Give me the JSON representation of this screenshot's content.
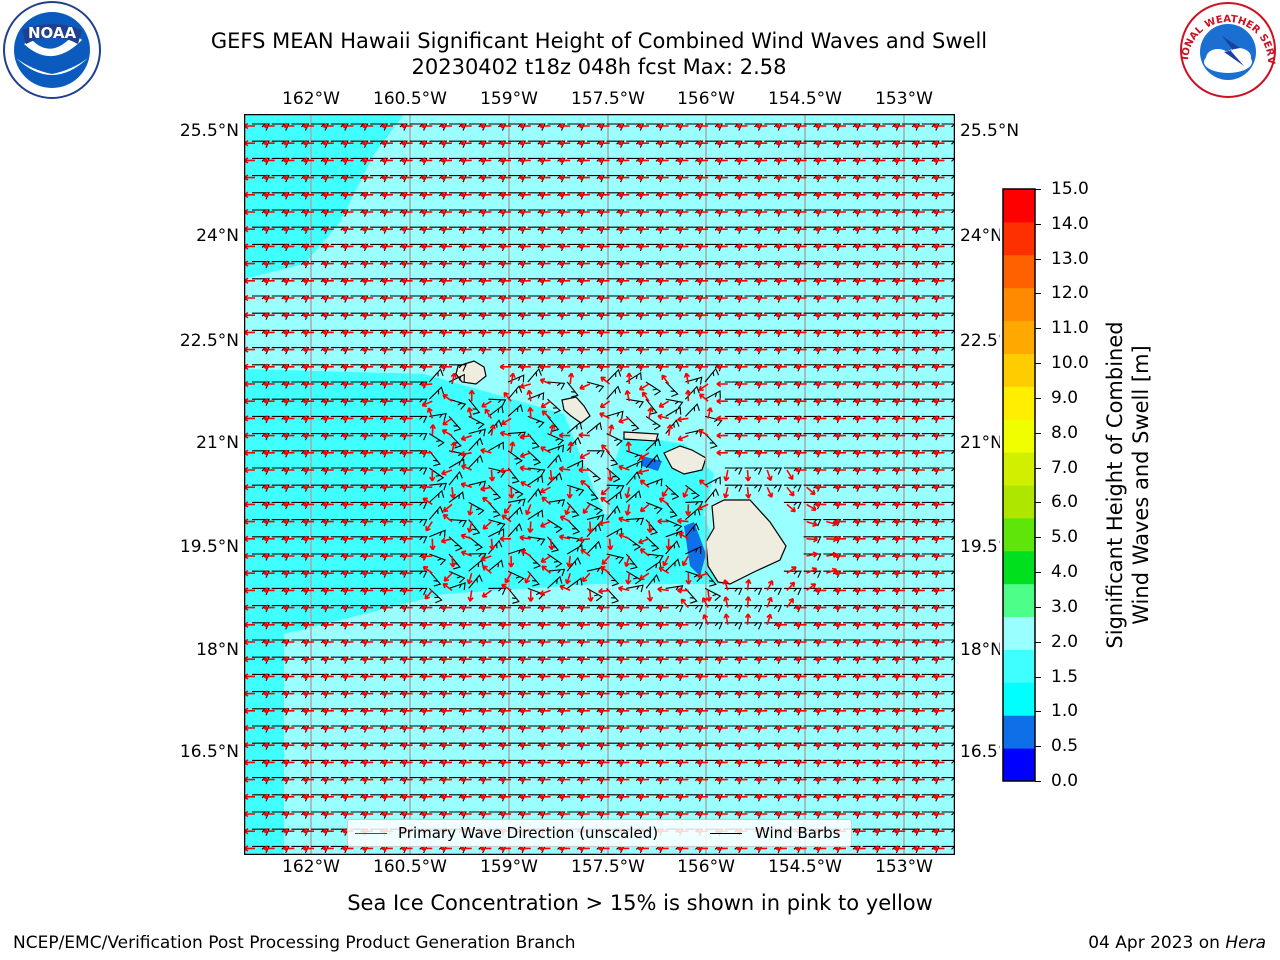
{
  "title": "GEFS MEAN Hawaii Significant Height of Combined Wind Waves and Swell",
  "subtitle": "20230402 t18z 048h fcst   Max: 2.58",
  "lon_labels": [
    "162°W",
    "160.5°W",
    "159°W",
    "157.5°W",
    "156°W",
    "154.5°W",
    "153°W"
  ],
  "lat_labels": [
    "25.5°N",
    "24°N",
    "22.5°N",
    "21°N",
    "19.5°N",
    "18°N",
    "16.5°N"
  ],
  "colorbar": {
    "label_line1": "Significant Height of Combined",
    "label_line2": "Wind Waves and Swell [m]",
    "ticks": [
      "15.0",
      "14.0",
      "13.0",
      "12.0",
      "11.0",
      "10.0",
      "9.0",
      "8.0",
      "7.0",
      "6.0",
      "5.0",
      "4.0",
      "3.0",
      "2.0",
      "1.5",
      "1.0",
      "0.5",
      "0.0"
    ],
    "colors": [
      "#0000ff",
      "#0f6fe8",
      "#00ffff",
      "#40ffff",
      "#99ffff",
      "#4dff88",
      "#00e01e",
      "#5ee60b",
      "#aee600",
      "#d0f000",
      "#f0ff00",
      "#ffee00",
      "#ffcc00",
      "#ffa800",
      "#ff8a00",
      "#ff6000",
      "#ff3000",
      "#ff0000"
    ]
  },
  "map": {
    "ocean_colors": {
      "low": "#40ffff",
      "mid": "#99ffff",
      "high": "#aaffff",
      "dark": "#0f6fe8"
    },
    "land_color": "#efece0",
    "arrow_color": "#ff0000",
    "barb_color": "#000000"
  },
  "legend": {
    "wave_direction": "Primary Wave Direction (unscaled)",
    "wind_barbs": "Wind Barbs"
  },
  "note": "Sea Ice Concentration > 15% is shown in pink to yellow",
  "footer": {
    "left": "NCEP/EMC/Verification Post Processing Product Generation Branch",
    "right_date": "04 Apr 2023 on",
    "right_machine": "Hera"
  },
  "logos": {
    "noaa_text": "NOAA",
    "nws_text": "NATIONAL WEATHER SERVICE"
  }
}
